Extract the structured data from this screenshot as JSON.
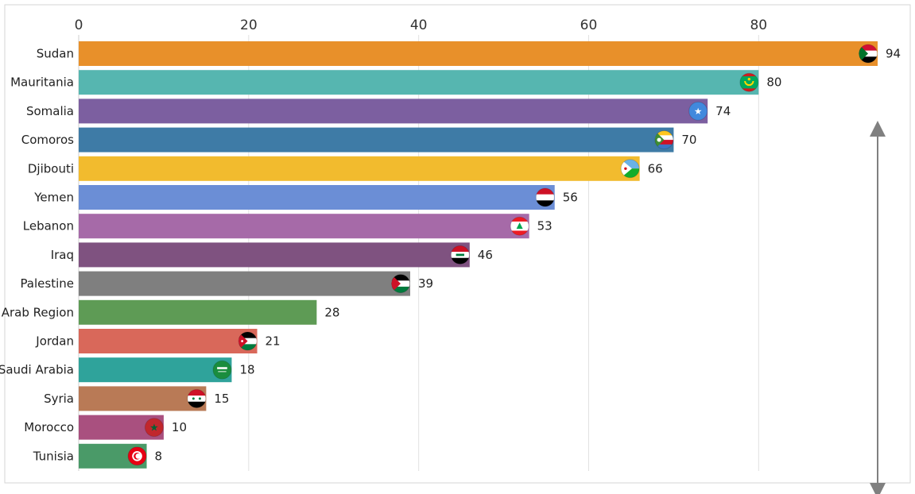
{
  "chart_data": {
    "type": "bar",
    "orientation": "horizontal",
    "title": "",
    "xlabel": "",
    "ylabel": "",
    "xlim": [
      0,
      94
    ],
    "x_ticks": [
      0,
      20,
      40,
      60,
      80
    ],
    "grid": true,
    "legend": "none",
    "categories": [
      "Sudan",
      "Mauritania",
      "Somalia",
      "Comoros",
      "Djibouti",
      "Yemen",
      "Lebanon",
      "Iraq",
      "Palestine",
      "Arab Region",
      "Jordan",
      "Saudi Arabia",
      "Syria",
      "Morocco",
      "Tunisia"
    ],
    "values": [
      94,
      80,
      74,
      70,
      66,
      56,
      53,
      46,
      39,
      28,
      21,
      18,
      15,
      10,
      8
    ],
    "colors": [
      "#e8902a",
      "#56b6b0",
      "#7c5fa0",
      "#3e7ba6",
      "#f2bb2e",
      "#6b8ed6",
      "#a66aa8",
      "#7f5280",
      "#7f7f7f",
      "#5e9b55",
      "#d9685a",
      "#2fa39b",
      "#b97a56",
      "#a9507f",
      "#4a9a68"
    ],
    "flags": [
      "sudan-flag-icon",
      "mauritania-flag-icon",
      "somalia-flag-icon",
      "comoros-flag-icon",
      "djibouti-flag-icon",
      "yemen-flag-icon",
      "lebanon-flag-icon",
      "iraq-flag-icon",
      "palestine-flag-icon",
      "",
      "jordan-flag-icon",
      "saudi-arabia-flag-icon",
      "syria-flag-icon",
      "morocco-flag-icon",
      "tunisia-flag-icon"
    ]
  }
}
